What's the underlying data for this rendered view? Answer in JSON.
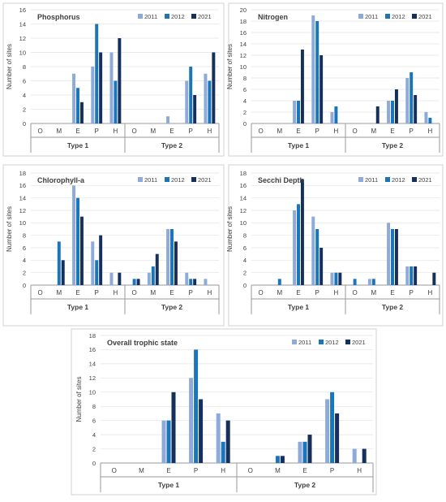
{
  "colors": {
    "2011": "#8eaadb",
    "2012": "#1b75bb",
    "2021": "#16305d",
    "axis": "#9a9a9a",
    "grid": "#e3e3e3",
    "text": "#404040"
  },
  "chart_data": [
    {
      "type": "bar",
      "title": "Phosphorus",
      "ylabel": "Number of sites",
      "ylim": [
        0,
        16
      ],
      "yticks": [
        0,
        2,
        4,
        6,
        8,
        10,
        12,
        14,
        16
      ],
      "groups": [
        "Type 1",
        "Type 2"
      ],
      "categories": [
        "O",
        "M",
        "E",
        "P",
        "H"
      ],
      "legend": "top-right",
      "series": [
        {
          "name": "2011",
          "values": [
            [
              0,
              0,
              7,
              8,
              10
            ],
            [
              0,
              0,
              1,
              6,
              7
            ]
          ]
        },
        {
          "name": "2012",
          "values": [
            [
              0,
              0,
              5,
              14,
              6
            ],
            [
              0,
              0,
              0,
              8,
              6
            ]
          ]
        },
        {
          "name": "2021",
          "values": [
            [
              0,
              0,
              3,
              10,
              12
            ],
            [
              0,
              0,
              0,
              4,
              10
            ]
          ]
        }
      ]
    },
    {
      "type": "bar",
      "title": "Nitrogen",
      "ylabel": "Number of sites",
      "ylim": [
        0,
        20
      ],
      "yticks": [
        0,
        2,
        4,
        6,
        8,
        10,
        12,
        14,
        16,
        18,
        20
      ],
      "groups": [
        "Type 1",
        "Type 2"
      ],
      "categories": [
        "O",
        "M",
        "E",
        "P",
        "H"
      ],
      "legend": "top-right",
      "series": [
        {
          "name": "2011",
          "values": [
            [
              0,
              0,
              4,
              19,
              2
            ],
            [
              0,
              0,
              4,
              8,
              2
            ]
          ]
        },
        {
          "name": "2012",
          "values": [
            [
              0,
              0,
              4,
              18,
              3
            ],
            [
              0,
              0,
              4,
              9,
              1
            ]
          ]
        },
        {
          "name": "2021",
          "values": [
            [
              0,
              0,
              13,
              12,
              0
            ],
            [
              0,
              3,
              6,
              5,
              0
            ]
          ]
        }
      ]
    },
    {
      "type": "bar",
      "title": "Chlorophyll-a",
      "ylabel": "Number of sites",
      "ylim": [
        0,
        18
      ],
      "yticks": [
        0,
        2,
        4,
        6,
        8,
        10,
        12,
        14,
        16,
        18
      ],
      "groups": [
        "Type 1",
        "Type 2"
      ],
      "categories": [
        "O",
        "M",
        "E",
        "P",
        "H"
      ],
      "legend": "top-right",
      "series": [
        {
          "name": "2011",
          "values": [
            [
              0,
              0,
              16,
              7,
              2
            ],
            [
              0,
              2,
              9,
              2,
              1
            ]
          ]
        },
        {
          "name": "2012",
          "values": [
            [
              0,
              7,
              14,
              4,
              0
            ],
            [
              1,
              3,
              9,
              1,
              0
            ]
          ]
        },
        {
          "name": "2021",
          "values": [
            [
              0,
              4,
              11,
              8,
              2
            ],
            [
              1,
              5,
              7,
              1,
              0
            ]
          ]
        }
      ]
    },
    {
      "type": "bar",
      "title": "Secchi Depth",
      "ylabel": "Number of sites",
      "ylim": [
        0,
        18
      ],
      "yticks": [
        0,
        2,
        4,
        6,
        8,
        10,
        12,
        14,
        16,
        18
      ],
      "groups": [
        "Type 1",
        "Type 2"
      ],
      "categories": [
        "O",
        "M",
        "E",
        "P",
        "H"
      ],
      "legend": "top-right",
      "series": [
        {
          "name": "2011",
          "values": [
            [
              0,
              0,
              12,
              11,
              2
            ],
            [
              0,
              1,
              10,
              3,
              0
            ]
          ]
        },
        {
          "name": "2012",
          "values": [
            [
              0,
              1,
              13,
              9,
              2
            ],
            [
              1,
              1,
              9,
              3,
              0
            ]
          ]
        },
        {
          "name": "2021",
          "values": [
            [
              0,
              0,
              17,
              6,
              2
            ],
            [
              0,
              0,
              9,
              3,
              2
            ]
          ]
        }
      ]
    },
    {
      "type": "bar",
      "title": "Overall trophic state",
      "ylabel": "Number of sites",
      "ylim": [
        0,
        18
      ],
      "yticks": [
        0,
        2,
        4,
        6,
        8,
        10,
        12,
        14,
        16,
        18
      ],
      "groups": [
        "Type 1",
        "Type 2"
      ],
      "categories": [
        "O",
        "M",
        "E",
        "P",
        "H"
      ],
      "legend": "top-right",
      "series": [
        {
          "name": "2011",
          "values": [
            [
              0,
              0,
              6,
              12,
              7
            ],
            [
              0,
              0,
              3,
              9,
              2
            ]
          ]
        },
        {
          "name": "2012",
          "values": [
            [
              0,
              0,
              6,
              16,
              3
            ],
            [
              0,
              1,
              3,
              10,
              0
            ]
          ]
        },
        {
          "name": "2021",
          "values": [
            [
              0,
              0,
              10,
              9,
              6
            ],
            [
              0,
              1,
              4,
              7,
              2
            ]
          ]
        }
      ]
    }
  ]
}
